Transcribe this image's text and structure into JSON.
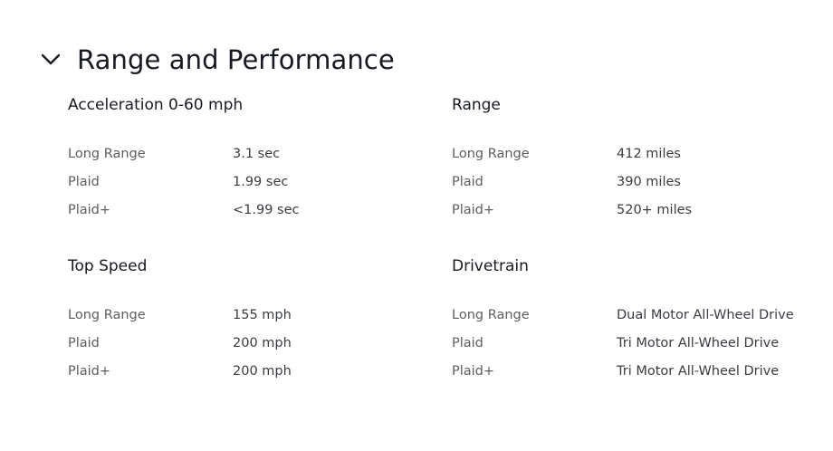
{
  "section": {
    "title": "Range and Performance",
    "toggle_icon": "chevron-down-icon"
  },
  "groups": {
    "acceleration": {
      "title": "Acceleration 0-60 mph",
      "rows": [
        {
          "label": "Long Range",
          "value": "3.1 sec"
        },
        {
          "label": "Plaid",
          "value": "1.99 sec"
        },
        {
          "label": "Plaid+",
          "value": "<1.99 sec"
        }
      ]
    },
    "range": {
      "title": "Range",
      "rows": [
        {
          "label": "Long Range",
          "value": "412 miles"
        },
        {
          "label": "Plaid",
          "value": "390 miles"
        },
        {
          "label": "Plaid+",
          "value": "520+ miles"
        }
      ]
    },
    "top_speed": {
      "title": "Top Speed",
      "rows": [
        {
          "label": "Long Range",
          "value": "155 mph"
        },
        {
          "label": "Plaid",
          "value": "200 mph"
        },
        {
          "label": "Plaid+",
          "value": "200 mph"
        }
      ]
    },
    "drivetrain": {
      "title": "Drivetrain",
      "rows": [
        {
          "label": "Long Range",
          "value": "Dual Motor All-Wheel Drive"
        },
        {
          "label": "Plaid",
          "value": "Tri Motor All-Wheel Drive"
        },
        {
          "label": "Plaid+",
          "value": "Tri Motor All-Wheel Drive"
        }
      ]
    }
  }
}
